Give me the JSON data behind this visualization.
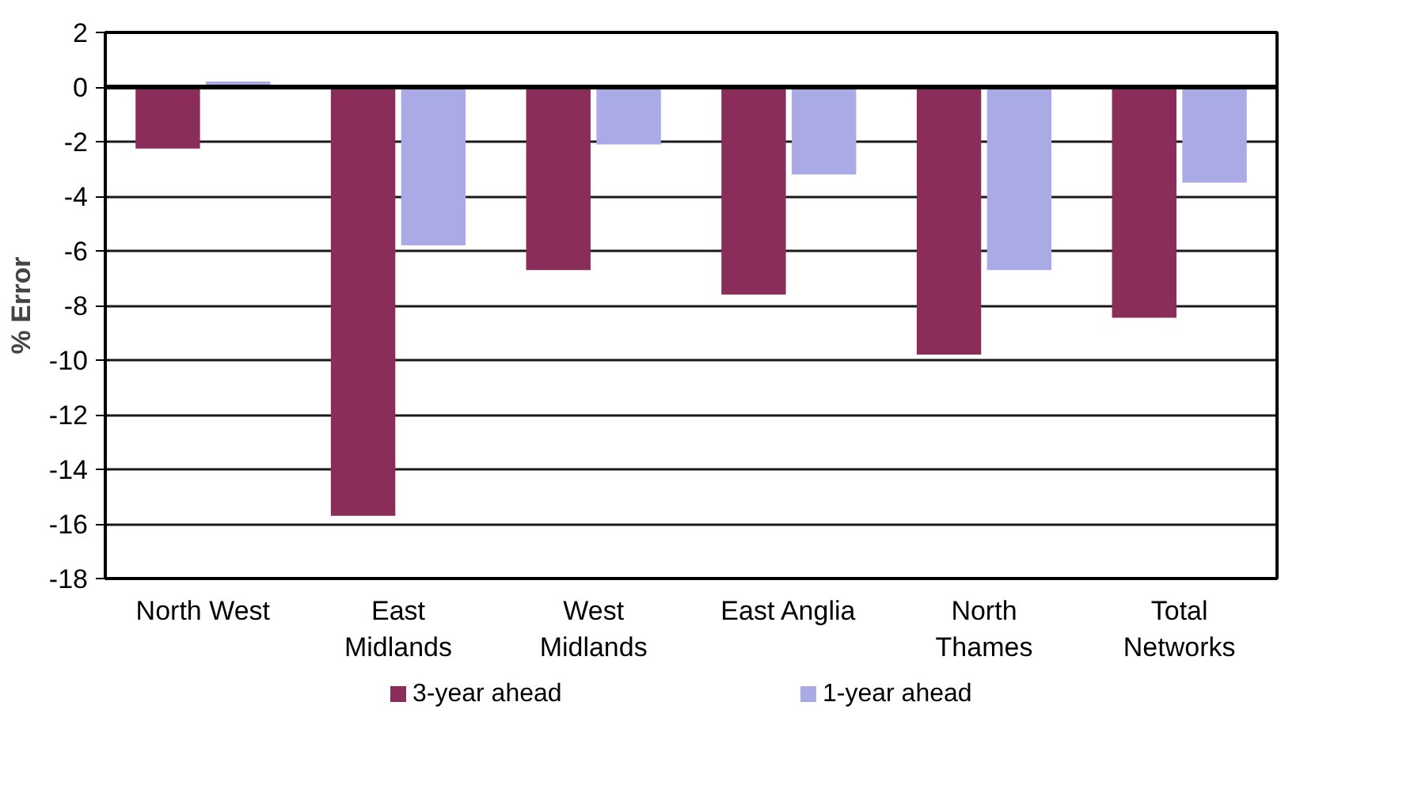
{
  "chart_data": {
    "type": "bar",
    "ylabel": "% Error",
    "categories": [
      "North West",
      "East Midlands",
      "West Midlands",
      "East Anglia",
      "North Thames",
      "Total Networks"
    ],
    "series": [
      {
        "name": "3-year ahead",
        "color": "#8b2d5a",
        "values": [
          -2.25,
          -15.7,
          -6.7,
          -7.6,
          -9.8,
          -8.45
        ]
      },
      {
        "name": "1-year ahead",
        "color": "#a9aae6",
        "values": [
          0.2,
          -5.8,
          -2.1,
          -3.2,
          -6.7,
          -3.5
        ]
      }
    ],
    "ylim": [
      -18,
      2
    ],
    "yticks": [
      -18,
      -16,
      -14,
      -12,
      -10,
      -8,
      -6,
      -4,
      -2,
      0,
      2
    ],
    "grid": "y",
    "legend": "bottom"
  }
}
